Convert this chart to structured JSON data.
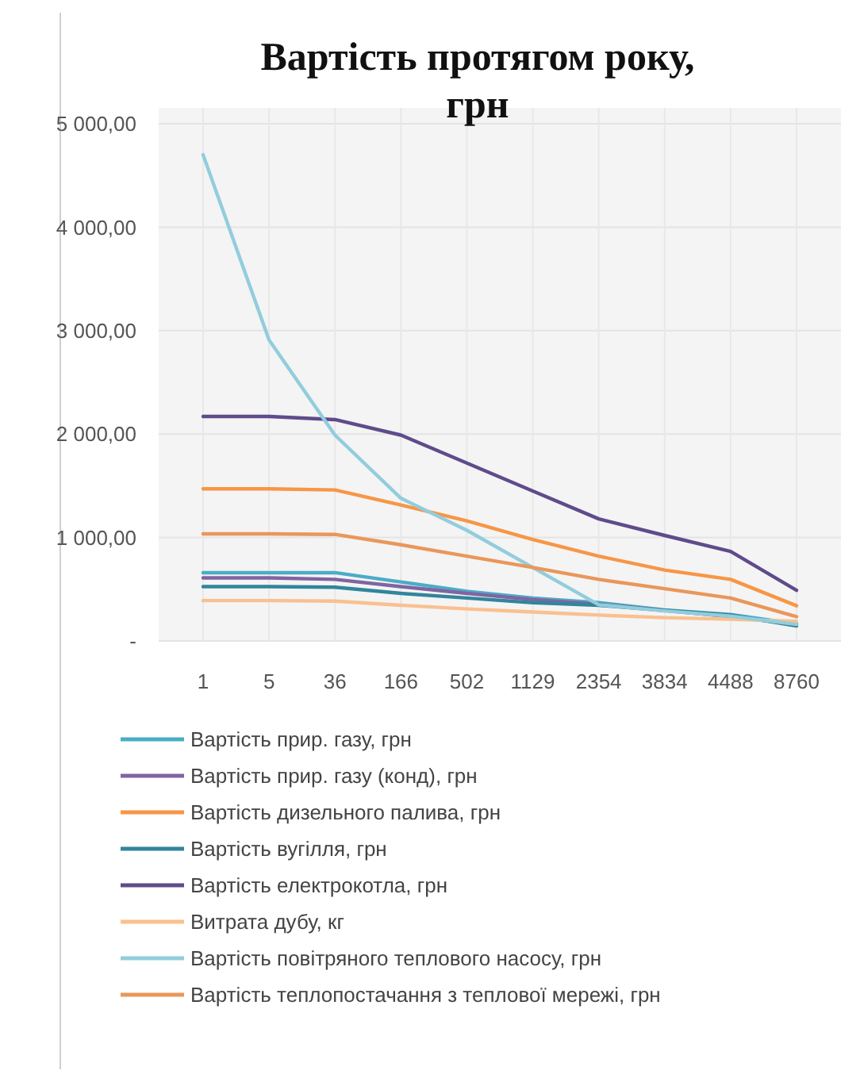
{
  "chart_data": {
    "type": "line",
    "title": "Вартість протягом року, грн",
    "categories": [
      "1",
      "5",
      "36",
      "166",
      "502",
      "1129",
      "2354",
      "3834",
      "4488",
      "8760"
    ],
    "ylim": [
      0,
      5000
    ],
    "yticks": [
      {
        "value": 0,
        "label": "-"
      },
      {
        "value": 1000,
        "label": "1 000,00"
      },
      {
        "value": 2000,
        "label": "2 000,00"
      },
      {
        "value": 3000,
        "label": "3 000,00"
      },
      {
        "value": 4000,
        "label": "4 000,00"
      },
      {
        "value": 5000,
        "label": "5 000,00"
      }
    ],
    "grid": true,
    "legend": "bottom",
    "marker": "none",
    "series": [
      {
        "name": "Вартість прир. газу, грн",
        "color": "#4bacc6",
        "values": [
          660,
          660,
          660,
          570,
          480,
          415,
          370,
          300,
          255,
          165
        ]
      },
      {
        "name": "Вартість прир. газу (конд), грн",
        "color": "#8064a2",
        "values": [
          610,
          610,
          595,
          525,
          460,
          400,
          355,
          295,
          235,
          160
        ]
      },
      {
        "name": "Вартість  дизельного палива, грн",
        "color": "#f79646",
        "values": [
          1470,
          1470,
          1460,
          1315,
          1160,
          980,
          820,
          685,
          595,
          340
        ]
      },
      {
        "name": "Вартість вугілля, грн",
        "color": "#31859c",
        "values": [
          525,
          525,
          520,
          460,
          415,
          370,
          345,
          295,
          250,
          145
        ]
      },
      {
        "name": "Вартість електрокотла, грн",
        "color": "#5f4b8b",
        "values": [
          2170,
          2170,
          2140,
          1990,
          1720,
          1450,
          1180,
          1020,
          865,
          490
        ]
      },
      {
        "name": "Витрата дубу, кг",
        "color": "#fac090",
        "values": [
          390,
          390,
          385,
          345,
          310,
          280,
          250,
          225,
          210,
          190
        ]
      },
      {
        "name": "Вартість повітряного теплового насосу, грн",
        "color": "#92cddc",
        "values": [
          4700,
          2910,
          1990,
          1380,
          1070,
          710,
          350,
          290,
          240,
          160
        ]
      },
      {
        "name": "Вартість теплопостачання з теплової мережі, грн",
        "color": "#e9975a",
        "values": [
          1035,
          1035,
          1030,
          930,
          820,
          710,
          595,
          505,
          415,
          235
        ]
      }
    ]
  }
}
